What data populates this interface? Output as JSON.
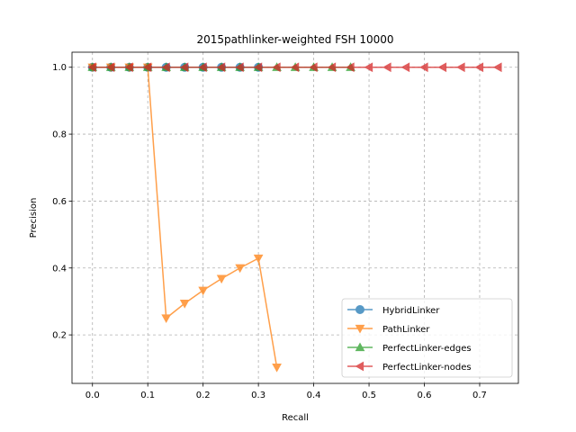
{
  "chart_data": {
    "type": "line",
    "title": "2015pathlinker-weighted FSH 10000",
    "xlabel": "Recall",
    "ylabel": "Precision",
    "xlim": [
      -0.037,
      0.77
    ],
    "ylim": [
      0.055,
      1.045
    ],
    "xticks": [
      0.0,
      0.1,
      0.2,
      0.3,
      0.4,
      0.5,
      0.6,
      0.7
    ],
    "xtick_labels": [
      "0.0",
      "0.1",
      "0.2",
      "0.3",
      "0.4",
      "0.5",
      "0.6",
      "0.7"
    ],
    "yticks": [
      0.2,
      0.4,
      0.6,
      0.8,
      1.0
    ],
    "ytick_labels": [
      "0.2",
      "0.4",
      "0.6",
      "0.8",
      "1.0"
    ],
    "grid": true,
    "legend_position": "lower-right",
    "series": [
      {
        "name": "HybridLinker",
        "color": "#1f77b4",
        "marker": "circle",
        "x": [
          0.0,
          0.0333,
          0.0667,
          0.1,
          0.1333,
          0.1667,
          0.2,
          0.2333,
          0.2667,
          0.3
        ],
        "y": [
          1.0,
          1.0,
          1.0,
          1.0,
          1.0,
          1.0,
          1.0,
          1.0,
          1.0,
          1.0
        ]
      },
      {
        "name": "PathLinker",
        "color": "#ff7f0e",
        "marker": "triangle-down",
        "x": [
          0.0,
          0.0333,
          0.0667,
          0.1,
          0.1333,
          0.1667,
          0.2,
          0.2333,
          0.2667,
          0.3,
          0.3333
        ],
        "y": [
          1.0,
          1.0,
          1.0,
          1.0,
          0.25,
          0.294,
          0.333,
          0.368,
          0.4,
          0.429,
          0.103
        ]
      },
      {
        "name": "PerfectLinker-edges",
        "color": "#2ca02c",
        "marker": "triangle-up",
        "x": [
          0.0,
          0.0333,
          0.0667,
          0.1,
          0.1333,
          0.1667,
          0.2,
          0.2333,
          0.2667,
          0.3,
          0.3333,
          0.3667,
          0.4,
          0.4333,
          0.4667
        ],
        "y": [
          1.0,
          1.0,
          1.0,
          1.0,
          1.0,
          1.0,
          1.0,
          1.0,
          1.0,
          1.0,
          1.0,
          1.0,
          1.0,
          1.0,
          1.0
        ]
      },
      {
        "name": "PerfectLinker-nodes",
        "color": "#d62728",
        "marker": "triangle-left",
        "x": [
          0.0,
          0.0333,
          0.0667,
          0.1,
          0.1333,
          0.1667,
          0.2,
          0.2333,
          0.2667,
          0.3,
          0.3333,
          0.3667,
          0.4,
          0.4333,
          0.4667,
          0.5,
          0.5333,
          0.5667,
          0.6,
          0.6333,
          0.6667,
          0.7,
          0.7333
        ],
        "y": [
          1.0,
          1.0,
          1.0,
          1.0,
          1.0,
          1.0,
          1.0,
          1.0,
          1.0,
          1.0,
          1.0,
          1.0,
          1.0,
          1.0,
          1.0,
          1.0,
          1.0,
          1.0,
          1.0,
          1.0,
          1.0,
          1.0,
          1.0
        ]
      }
    ]
  }
}
